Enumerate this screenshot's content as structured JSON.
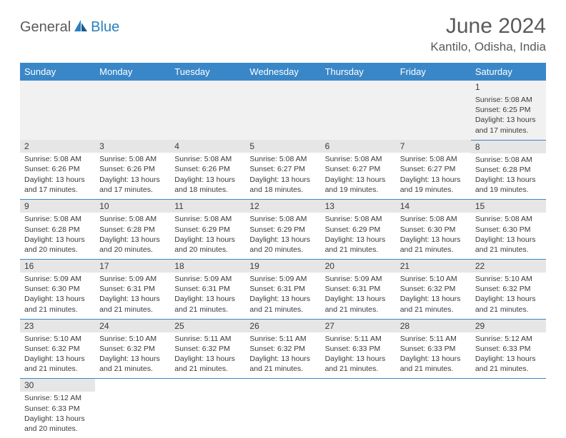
{
  "logo": {
    "general": "General",
    "blue": "Blue"
  },
  "title": "June 2024",
  "location": "Kantilo, Odisha, India",
  "colors": {
    "header_bg": "#3a87c8",
    "header_text": "#ffffff",
    "border": "#3a87c8",
    "daynum_bg": "#e6e6e6",
    "text": "#3a3a3a",
    "logo_gray": "#5a5a5a",
    "logo_blue": "#2a7fbf"
  },
  "weekdays": [
    "Sunday",
    "Monday",
    "Tuesday",
    "Wednesday",
    "Thursday",
    "Friday",
    "Saturday"
  ],
  "days": {
    "1": {
      "sunrise": "5:08 AM",
      "sunset": "6:25 PM",
      "daylight": "13 hours and 17 minutes."
    },
    "2": {
      "sunrise": "5:08 AM",
      "sunset": "6:26 PM",
      "daylight": "13 hours and 17 minutes."
    },
    "3": {
      "sunrise": "5:08 AM",
      "sunset": "6:26 PM",
      "daylight": "13 hours and 17 minutes."
    },
    "4": {
      "sunrise": "5:08 AM",
      "sunset": "6:26 PM",
      "daylight": "13 hours and 18 minutes."
    },
    "5": {
      "sunrise": "5:08 AM",
      "sunset": "6:27 PM",
      "daylight": "13 hours and 18 minutes."
    },
    "6": {
      "sunrise": "5:08 AM",
      "sunset": "6:27 PM",
      "daylight": "13 hours and 19 minutes."
    },
    "7": {
      "sunrise": "5:08 AM",
      "sunset": "6:27 PM",
      "daylight": "13 hours and 19 minutes."
    },
    "8": {
      "sunrise": "5:08 AM",
      "sunset": "6:28 PM",
      "daylight": "13 hours and 19 minutes."
    },
    "9": {
      "sunrise": "5:08 AM",
      "sunset": "6:28 PM",
      "daylight": "13 hours and 20 minutes."
    },
    "10": {
      "sunrise": "5:08 AM",
      "sunset": "6:28 PM",
      "daylight": "13 hours and 20 minutes."
    },
    "11": {
      "sunrise": "5:08 AM",
      "sunset": "6:29 PM",
      "daylight": "13 hours and 20 minutes."
    },
    "12": {
      "sunrise": "5:08 AM",
      "sunset": "6:29 PM",
      "daylight": "13 hours and 20 minutes."
    },
    "13": {
      "sunrise": "5:08 AM",
      "sunset": "6:29 PM",
      "daylight": "13 hours and 21 minutes."
    },
    "14": {
      "sunrise": "5:08 AM",
      "sunset": "6:30 PM",
      "daylight": "13 hours and 21 minutes."
    },
    "15": {
      "sunrise": "5:08 AM",
      "sunset": "6:30 PM",
      "daylight": "13 hours and 21 minutes."
    },
    "16": {
      "sunrise": "5:09 AM",
      "sunset": "6:30 PM",
      "daylight": "13 hours and 21 minutes."
    },
    "17": {
      "sunrise": "5:09 AM",
      "sunset": "6:31 PM",
      "daylight": "13 hours and 21 minutes."
    },
    "18": {
      "sunrise": "5:09 AM",
      "sunset": "6:31 PM",
      "daylight": "13 hours and 21 minutes."
    },
    "19": {
      "sunrise": "5:09 AM",
      "sunset": "6:31 PM",
      "daylight": "13 hours and 21 minutes."
    },
    "20": {
      "sunrise": "5:09 AM",
      "sunset": "6:31 PM",
      "daylight": "13 hours and 21 minutes."
    },
    "21": {
      "sunrise": "5:10 AM",
      "sunset": "6:32 PM",
      "daylight": "13 hours and 21 minutes."
    },
    "22": {
      "sunrise": "5:10 AM",
      "sunset": "6:32 PM",
      "daylight": "13 hours and 21 minutes."
    },
    "23": {
      "sunrise": "5:10 AM",
      "sunset": "6:32 PM",
      "daylight": "13 hours and 21 minutes."
    },
    "24": {
      "sunrise": "5:10 AM",
      "sunset": "6:32 PM",
      "daylight": "13 hours and 21 minutes."
    },
    "25": {
      "sunrise": "5:11 AM",
      "sunset": "6:32 PM",
      "daylight": "13 hours and 21 minutes."
    },
    "26": {
      "sunrise": "5:11 AM",
      "sunset": "6:32 PM",
      "daylight": "13 hours and 21 minutes."
    },
    "27": {
      "sunrise": "5:11 AM",
      "sunset": "6:33 PM",
      "daylight": "13 hours and 21 minutes."
    },
    "28": {
      "sunrise": "5:11 AM",
      "sunset": "6:33 PM",
      "daylight": "13 hours and 21 minutes."
    },
    "29": {
      "sunrise": "5:12 AM",
      "sunset": "6:33 PM",
      "daylight": "13 hours and 21 minutes."
    },
    "30": {
      "sunrise": "5:12 AM",
      "sunset": "6:33 PM",
      "daylight": "13 hours and 20 minutes."
    }
  },
  "grid": [
    [
      null,
      null,
      null,
      null,
      null,
      null,
      "1"
    ],
    [
      "2",
      "3",
      "4",
      "5",
      "6",
      "7",
      "8"
    ],
    [
      "9",
      "10",
      "11",
      "12",
      "13",
      "14",
      "15"
    ],
    [
      "16",
      "17",
      "18",
      "19",
      "20",
      "21",
      "22"
    ],
    [
      "23",
      "24",
      "25",
      "26",
      "27",
      "28",
      "29"
    ],
    [
      "30",
      null,
      null,
      null,
      null,
      null,
      null
    ]
  ],
  "labels": {
    "sunrise": "Sunrise:",
    "sunset": "Sunset:",
    "daylight": "Daylight:"
  }
}
